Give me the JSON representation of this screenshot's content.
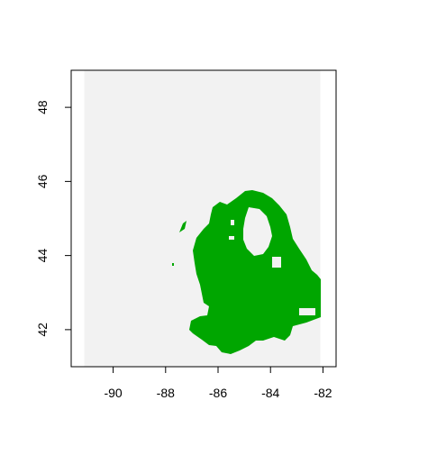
{
  "map": {
    "type": "raster",
    "x_ticks": [
      {
        "value": -90,
        "label": "-90"
      },
      {
        "value": -88,
        "label": "-88"
      },
      {
        "value": -86,
        "label": "-86"
      },
      {
        "value": -84,
        "label": "-84"
      },
      {
        "value": -82,
        "label": "-82"
      }
    ],
    "y_ticks": [
      {
        "value": 42,
        "label": "42"
      },
      {
        "value": 44,
        "label": "44"
      },
      {
        "value": 46,
        "label": "46"
      },
      {
        "value": 48,
        "label": "48"
      }
    ],
    "xlim": [
      -91.6,
      -81.5
    ],
    "ylim": [
      41.0,
      49.0
    ],
    "extent": {
      "lon": [
        -91.1,
        -82.1
      ],
      "lat": [
        41.0,
        49.0
      ]
    },
    "colors": {
      "background": "#f2f2f2",
      "land": "#00a600",
      "axis": "#000000"
    },
    "grid": false,
    "legend": "none"
  }
}
